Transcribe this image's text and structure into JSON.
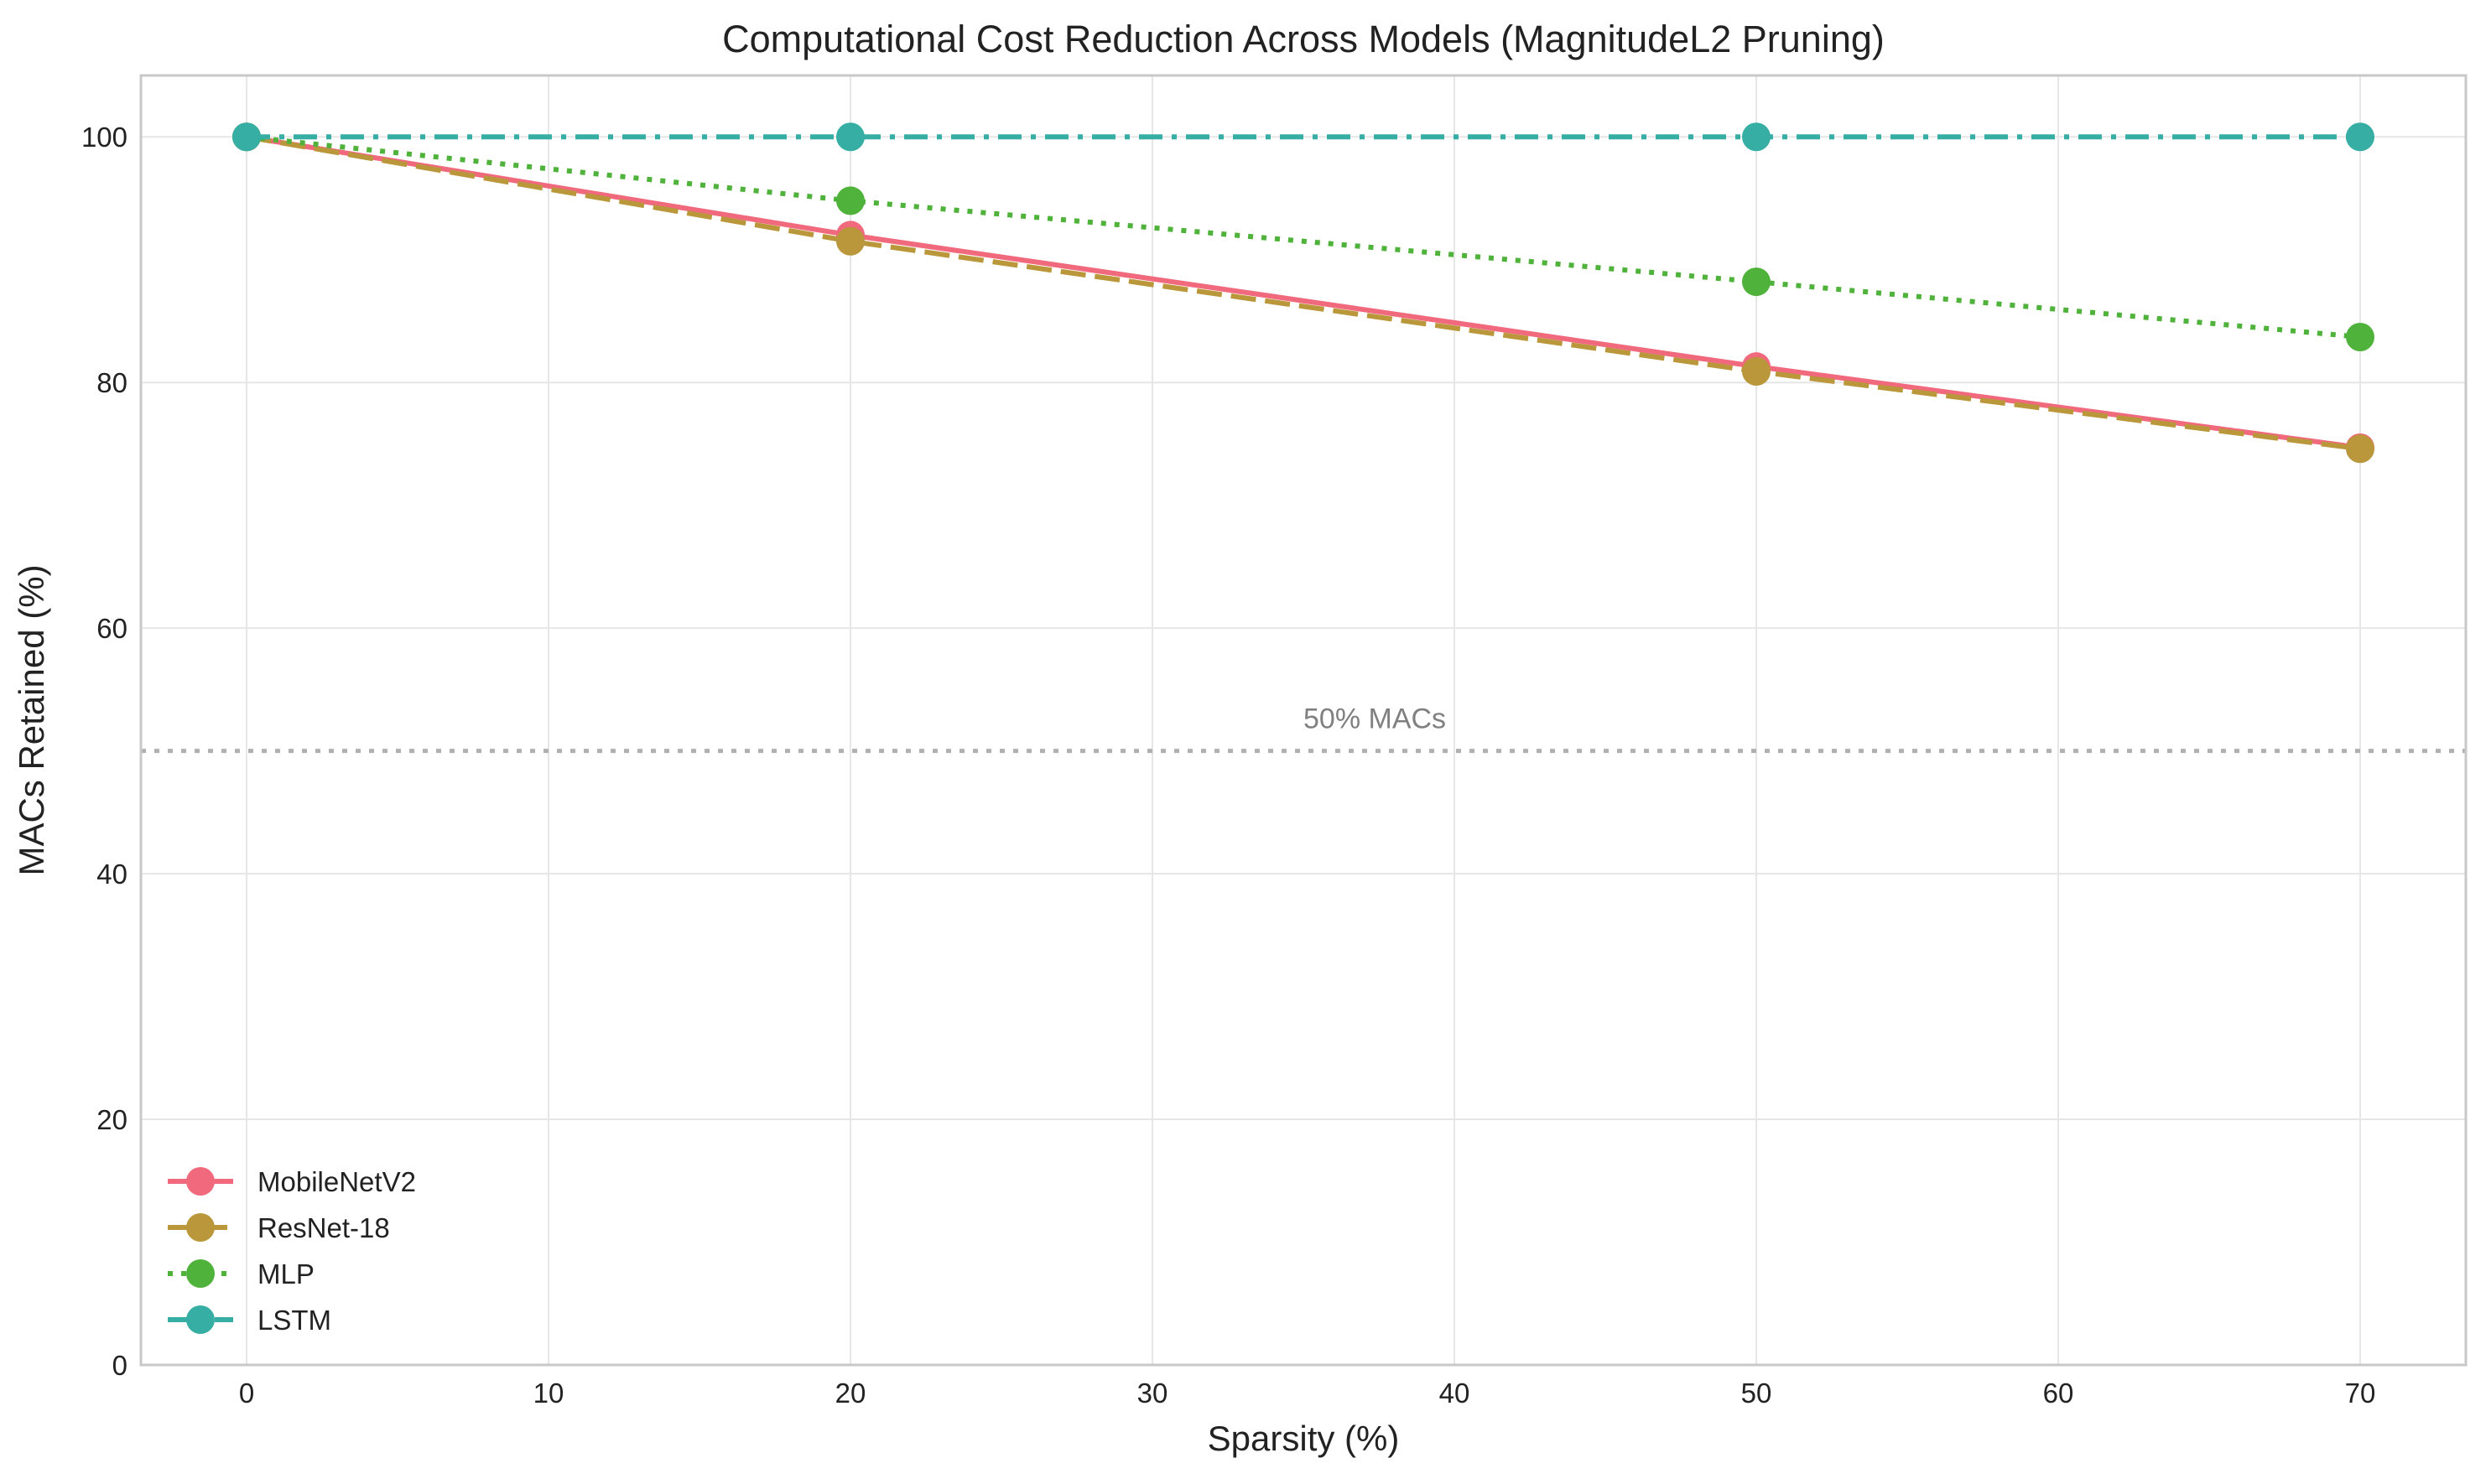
{
  "chart_data": {
    "type": "line",
    "title": "Computational Cost Reduction Across Models (MagnitudeL2 Pruning)",
    "xlabel": "Sparsity (%)",
    "ylabel": "MACs Retained (%)",
    "xlim": [
      -3.5,
      73.5
    ],
    "ylim": [
      0,
      105
    ],
    "xticks": [
      0,
      10,
      20,
      30,
      40,
      50,
      60,
      70
    ],
    "yticks": [
      0,
      20,
      40,
      60,
      80,
      100
    ],
    "grid": true,
    "legend_position": "lower-left",
    "x": [
      0,
      20,
      50,
      70
    ],
    "series": [
      {
        "name": "MobileNetV2",
        "values": [
          100,
          92.0,
          81.3,
          74.7
        ],
        "color": "#f0697c",
        "line_style": "solid"
      },
      {
        "name": "ResNet-18",
        "values": [
          100,
          91.5,
          80.9,
          74.6
        ],
        "color": "#b9973a",
        "line_style": "dashed"
      },
      {
        "name": "MLP",
        "values": [
          100,
          94.8,
          88.2,
          83.7
        ],
        "color": "#4fb23a",
        "line_style": "dotted"
      },
      {
        "name": "LSTM",
        "values": [
          100,
          100,
          100,
          100
        ],
        "color": "#36aea4",
        "line_style": "dashdot"
      }
    ],
    "reference_line": {
      "y": 50,
      "label": "50% MACs",
      "color": "#b0b0b0",
      "line_style": "dotted"
    }
  }
}
